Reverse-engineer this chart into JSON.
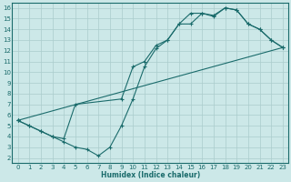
{
  "xlabel": "Humidex (Indice chaleur)",
  "xlim": [
    -0.5,
    23.5
  ],
  "ylim": [
    1.5,
    16.5
  ],
  "xticks": [
    0,
    1,
    2,
    3,
    4,
    5,
    6,
    7,
    8,
    9,
    10,
    11,
    12,
    13,
    14,
    15,
    16,
    17,
    18,
    19,
    20,
    21,
    22,
    23
  ],
  "yticks": [
    2,
    3,
    4,
    5,
    6,
    7,
    8,
    9,
    10,
    11,
    12,
    13,
    14,
    15,
    16
  ],
  "background_color": "#cce8e8",
  "grid_color": "#aacccc",
  "line_color": "#1a6b6b",
  "line1_x": [
    0,
    1,
    2,
    3,
    4,
    5,
    6,
    7,
    8,
    9,
    10,
    11,
    12,
    13,
    14,
    15,
    16,
    17,
    18,
    19,
    20,
    21,
    22,
    23
  ],
  "line1_y": [
    5.5,
    5.0,
    4.5,
    4.0,
    3.5,
    3.0,
    2.8,
    2.2,
    3.0,
    5.0,
    7.5,
    10.5,
    12.2,
    13.0,
    14.5,
    14.5,
    15.5,
    15.3,
    16.0,
    15.8,
    14.5,
    14.0,
    13.0,
    12.3
  ],
  "line2_x": [
    0,
    1,
    2,
    3,
    4,
    5,
    9,
    10,
    11,
    12,
    13,
    14,
    15,
    16,
    17,
    18,
    19,
    20,
    21,
    22,
    23
  ],
  "line2_y": [
    5.5,
    5.0,
    4.5,
    4.0,
    3.8,
    7.0,
    7.5,
    10.5,
    11.0,
    12.5,
    13.0,
    14.5,
    15.5,
    15.5,
    15.2,
    16.0,
    15.8,
    14.5,
    14.0,
    13.0,
    12.3
  ],
  "line3_x": [
    0,
    23
  ],
  "line3_y": [
    5.5,
    12.3
  ]
}
